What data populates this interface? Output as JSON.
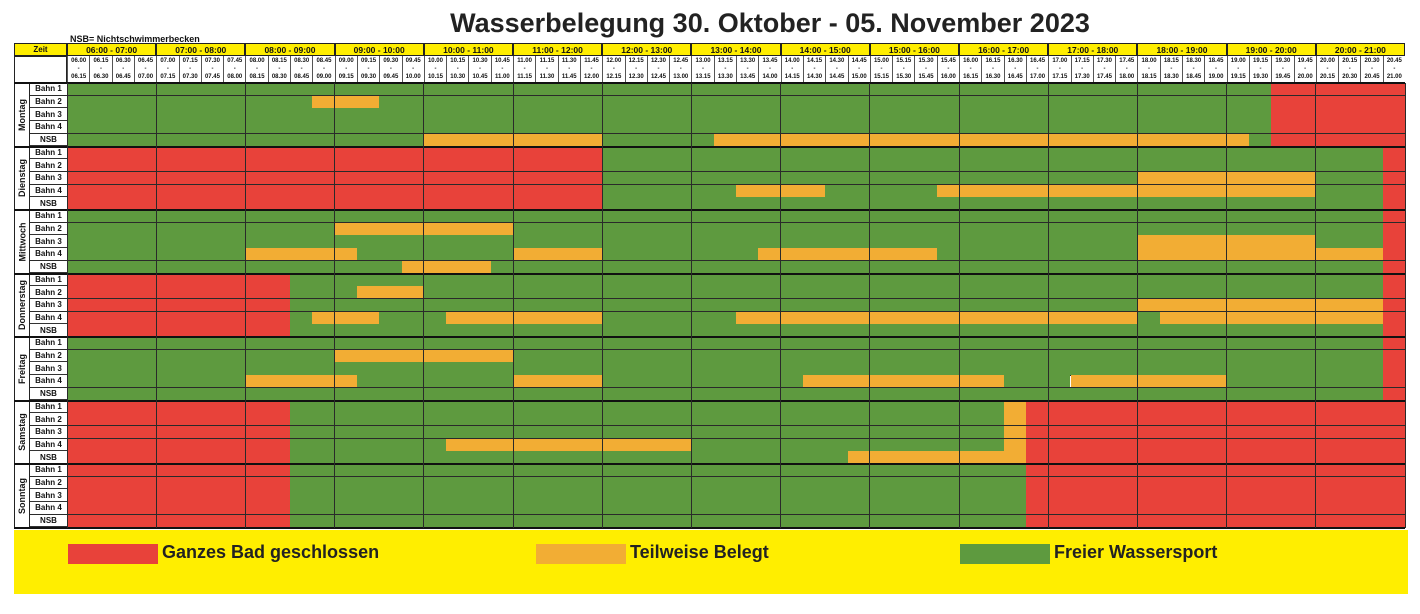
{
  "title": "Wasserbelegung 30. Oktober - 05. November 2023",
  "nsb_note": "NSB= Nichtschwimmerbecken",
  "zeit_label": "Zeit",
  "hours": [
    "06:00 - 07:00",
    "07:00 - 08:00",
    "08:00 - 09:00",
    "09:00 - 10:00",
    "10:00 - 11:00",
    "11:00 - 12:00",
    "12:00 - 13:00",
    "13:00 - 14:00",
    "14:00 - 15:00",
    "15:00 - 16:00",
    "16:00 - 17:00",
    "17:00 - 18:00",
    "18:00 - 19:00",
    "19:00 - 20:00",
    "20:00 - 21:00"
  ],
  "quarters": [
    [
      "06.00",
      "06.15"
    ],
    [
      "06.15",
      "06.30"
    ],
    [
      "06.30",
      "06.45"
    ],
    [
      "06.45",
      "07.00"
    ],
    [
      "07.00",
      "07.15"
    ],
    [
      "07.15",
      "07.30"
    ],
    [
      "07.30",
      "07.45"
    ],
    [
      "07.45",
      "08.00"
    ],
    [
      "08.00",
      "08.15"
    ],
    [
      "08.15",
      "08.30"
    ],
    [
      "08.30",
      "08.45"
    ],
    [
      "08.45",
      "09.00"
    ],
    [
      "09.00",
      "09.15"
    ],
    [
      "09.15",
      "09.30"
    ],
    [
      "09.30",
      "09.45"
    ],
    [
      "09.45",
      "10.00"
    ],
    [
      "10.00",
      "10.15"
    ],
    [
      "10.15",
      "10.30"
    ],
    [
      "10.30",
      "10.45"
    ],
    [
      "10.45",
      "11.00"
    ],
    [
      "11.00",
      "11.15"
    ],
    [
      "11.15",
      "11.30"
    ],
    [
      "11.30",
      "11.45"
    ],
    [
      "11.45",
      "12.00"
    ],
    [
      "12.00",
      "12.15"
    ],
    [
      "12.15",
      "12.30"
    ],
    [
      "12.30",
      "12.45"
    ],
    [
      "12.45",
      "13.00"
    ],
    [
      "13.00",
      "13.15"
    ],
    [
      "13.15",
      "13.30"
    ],
    [
      "13.30",
      "13.45"
    ],
    [
      "13.45",
      "14.00"
    ],
    [
      "14.00",
      "14.15"
    ],
    [
      "14.15",
      "14.30"
    ],
    [
      "14.30",
      "14.45"
    ],
    [
      "14.45",
      "15.00"
    ],
    [
      "15.00",
      "15.15"
    ],
    [
      "15.15",
      "15.30"
    ],
    [
      "15.30",
      "15.45"
    ],
    [
      "15.45",
      "16.00"
    ],
    [
      "16.00",
      "16.15"
    ],
    [
      "16.15",
      "16.30"
    ],
    [
      "16.30",
      "16.45"
    ],
    [
      "16.45",
      "17.00"
    ],
    [
      "17.00",
      "17.15"
    ],
    [
      "17.15",
      "17.30"
    ],
    [
      "17.30",
      "17.45"
    ],
    [
      "17.45",
      "18.00"
    ],
    [
      "18.00",
      "18.15"
    ],
    [
      "18.15",
      "18.30"
    ],
    [
      "18.30",
      "18.45"
    ],
    [
      "18.45",
      "19.00"
    ],
    [
      "19.00",
      "19.15"
    ],
    [
      "19.15",
      "19.30"
    ],
    [
      "19.30",
      "19.45"
    ],
    [
      "19.45",
      "20.00"
    ],
    [
      "20.00",
      "20.15"
    ],
    [
      "20.15",
      "20.30"
    ],
    [
      "20.30",
      "20.45"
    ],
    [
      "20.45",
      "21.00"
    ]
  ],
  "lanes": [
    "Bahn 1",
    "Bahn 2",
    "Bahn 3",
    "Bahn 4",
    "NSB"
  ],
  "colors": {
    "R": "#e8423a",
    "O": "#f2ad34",
    "G": "#5e9a3f"
  },
  "days": [
    {
      "name": "Montag",
      "rows": [
        [
          [
            "G",
            0,
            60,
            54
          ],
          [
            "R",
            54,
            60
          ]
        ],
        [
          [
            "G",
            0,
            60,
            0
          ],
          [
            "O",
            11,
            14
          ],
          [
            "G",
            14,
            54
          ],
          [
            "R",
            54,
            60
          ]
        ],
        [
          [
            "G",
            0,
            54
          ],
          [
            "R",
            54,
            60
          ]
        ],
        [
          [
            "G",
            0,
            54
          ],
          [
            "R",
            54,
            60
          ]
        ],
        [
          [
            "G",
            0,
            16
          ],
          [
            "O",
            16,
            24
          ],
          [
            "G",
            24,
            29
          ],
          [
            "O",
            29,
            53
          ],
          [
            "G",
            53,
            54
          ],
          [
            "R",
            54,
            60
          ]
        ]
      ]
    },
    {
      "name": "Dienstag",
      "rows": [
        [
          [
            "R",
            0,
            24
          ],
          [
            "G",
            24,
            59
          ],
          [
            "R",
            59,
            60
          ]
        ],
        [
          [
            "R",
            0,
            24
          ],
          [
            "G",
            24,
            59
          ],
          [
            "R",
            59,
            60
          ]
        ],
        [
          [
            "R",
            0,
            24
          ],
          [
            "G",
            24,
            48
          ],
          [
            "O",
            48,
            56
          ],
          [
            "G",
            56,
            59
          ],
          [
            "R",
            59,
            60
          ]
        ],
        [
          [
            "R",
            0,
            24
          ],
          [
            "G",
            24,
            30
          ],
          [
            "O",
            30,
            34
          ],
          [
            "G",
            34,
            39
          ],
          [
            "O",
            39,
            56
          ],
          [
            "G",
            56,
            59
          ],
          [
            "R",
            59,
            60
          ]
        ],
        [
          [
            "R",
            0,
            24
          ],
          [
            "G",
            24,
            59
          ],
          [
            "R",
            59,
            60
          ]
        ]
      ]
    },
    {
      "name": "Mittwoch",
      "rows": [
        [
          [
            "G",
            0,
            59
          ],
          [
            "R",
            59,
            60
          ]
        ],
        [
          [
            "G",
            0,
            12
          ],
          [
            "O",
            12,
            20
          ],
          [
            "G",
            20,
            59
          ],
          [
            "R",
            59,
            60
          ]
        ],
        [
          [
            "G",
            0,
            48
          ],
          [
            "O",
            48,
            56
          ],
          [
            "G",
            56,
            59
          ],
          [
            "R",
            59,
            60
          ]
        ],
        [
          [
            "G",
            0,
            8
          ],
          [
            "O",
            8,
            13
          ],
          [
            "G",
            13,
            20
          ],
          [
            "O",
            20,
            24
          ],
          [
            "G",
            24,
            31
          ],
          [
            "O",
            31,
            39
          ],
          [
            "G",
            39,
            48
          ],
          [
            "O",
            48,
            59
          ],
          [
            "R",
            59,
            60
          ]
        ],
        [
          [
            "G",
            0,
            15
          ],
          [
            "O",
            15,
            19
          ],
          [
            "G",
            19,
            59
          ],
          [
            "R",
            59,
            60
          ]
        ]
      ]
    },
    {
      "name": "Donnerstag",
      "rows": [
        [
          [
            "R",
            0,
            10
          ],
          [
            "G",
            10,
            59
          ],
          [
            "R",
            59,
            60
          ]
        ],
        [
          [
            "R",
            0,
            10
          ],
          [
            "G",
            10,
            13
          ],
          [
            "O",
            13,
            16
          ],
          [
            "G",
            16,
            59
          ],
          [
            "R",
            59,
            60
          ]
        ],
        [
          [
            "R",
            0,
            10
          ],
          [
            "G",
            10,
            48
          ],
          [
            "O",
            48,
            59
          ],
          [
            "R",
            59,
            60
          ]
        ],
        [
          [
            "R",
            0,
            10
          ],
          [
            "G",
            10,
            11
          ],
          [
            "O",
            11,
            14
          ],
          [
            "G",
            14,
            17
          ],
          [
            "O",
            17,
            24
          ],
          [
            "G",
            24,
            30
          ],
          [
            "O",
            30,
            48
          ],
          [
            "G",
            48,
            49
          ],
          [
            "O",
            49,
            59
          ],
          [
            "R",
            59,
            60
          ]
        ],
        [
          [
            "R",
            0,
            10
          ],
          [
            "G",
            10,
            59
          ],
          [
            "R",
            59,
            60
          ]
        ]
      ]
    },
    {
      "name": "Freitag",
      "rows": [
        [
          [
            "G",
            0,
            59
          ],
          [
            "R",
            59,
            60
          ]
        ],
        [
          [
            "G",
            0,
            12
          ],
          [
            "O",
            12,
            20
          ],
          [
            "G",
            20,
            59
          ],
          [
            "R",
            59,
            60
          ]
        ],
        [
          [
            "G",
            0,
            59
          ],
          [
            "R",
            59,
            60
          ]
        ],
        [
          [
            "G",
            0,
            8
          ],
          [
            "O",
            8,
            13
          ],
          [
            "G",
            13,
            20
          ],
          [
            "O",
            20,
            24
          ],
          [
            "G",
            24,
            33
          ],
          [
            "O",
            33,
            42
          ],
          [
            "G",
            42,
            45
          ],
          [
            "O",
            45,
            52
          ],
          [
            "G",
            52,
            59
          ],
          [
            "R",
            59,
            60
          ]
        ],
        [
          [
            "G",
            0,
            59
          ],
          [
            "R",
            59,
            60
          ]
        ]
      ]
    },
    {
      "name": "Samstag",
      "rows": [
        [
          [
            "R",
            0,
            10
          ],
          [
            "G",
            10,
            42
          ],
          [
            "O",
            42,
            43
          ],
          [
            "R",
            43,
            60
          ]
        ],
        [
          [
            "R",
            0,
            10
          ],
          [
            "G",
            10,
            42
          ],
          [
            "O",
            42,
            43
          ],
          [
            "R",
            43,
            60
          ]
        ],
        [
          [
            "R",
            0,
            10
          ],
          [
            "G",
            10,
            42
          ],
          [
            "O",
            42,
            43
          ],
          [
            "R",
            43,
            60
          ]
        ],
        [
          [
            "R",
            0,
            10
          ],
          [
            "G",
            10,
            17
          ],
          [
            "O",
            17,
            28
          ],
          [
            "G",
            28,
            42
          ],
          [
            "O",
            42,
            43
          ],
          [
            "R",
            43,
            60
          ]
        ],
        [
          [
            "R",
            0,
            10
          ],
          [
            "G",
            10,
            35
          ],
          [
            "O",
            35,
            43
          ],
          [
            "R",
            43,
            60
          ]
        ]
      ]
    },
    {
      "name": "Sonntag",
      "rows": [
        [
          [
            "R",
            0,
            10
          ],
          [
            "G",
            10,
            43
          ],
          [
            "R",
            43,
            60
          ]
        ],
        [
          [
            "R",
            0,
            10
          ],
          [
            "G",
            10,
            43
          ],
          [
            "R",
            43,
            60
          ]
        ],
        [
          [
            "R",
            0,
            10
          ],
          [
            "G",
            10,
            43
          ],
          [
            "R",
            43,
            60
          ]
        ],
        [
          [
            "R",
            0,
            10
          ],
          [
            "G",
            10,
            43
          ],
          [
            "R",
            43,
            60
          ]
        ],
        [
          [
            "R",
            0,
            10
          ],
          [
            "G",
            10,
            43
          ],
          [
            "R",
            43,
            60
          ]
        ]
      ]
    }
  ],
  "legend": [
    {
      "key": "R",
      "label": "Ganzes Bad geschlossen"
    },
    {
      "key": "O",
      "label": "Teilweise Belegt"
    },
    {
      "key": "G",
      "label": "Freier Wassersport"
    }
  ]
}
